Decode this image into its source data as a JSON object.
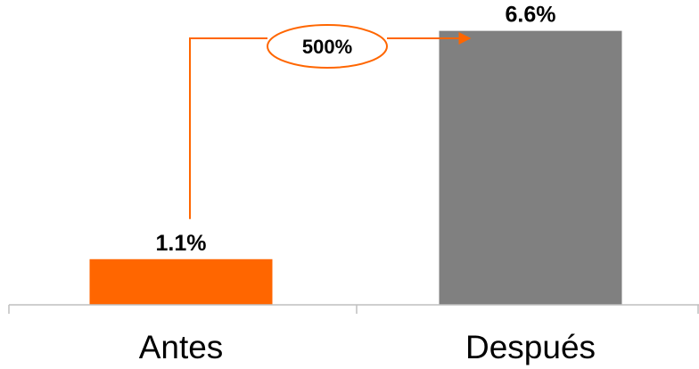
{
  "chart_data": {
    "type": "bar",
    "categories": [
      "Antes",
      "Después"
    ],
    "values": [
      1.1,
      6.6
    ],
    "data_labels": [
      "1.1%",
      "6.6%"
    ],
    "bar_colors": [
      "#ff6600",
      "#808080"
    ],
    "ylim": [
      0,
      7
    ],
    "grid": false,
    "legend": "none",
    "annotation": {
      "text": "500%",
      "from_category": "Antes",
      "to_category": "Después",
      "color": "#ff6600"
    },
    "axis_color": "#bfbfbf"
  }
}
